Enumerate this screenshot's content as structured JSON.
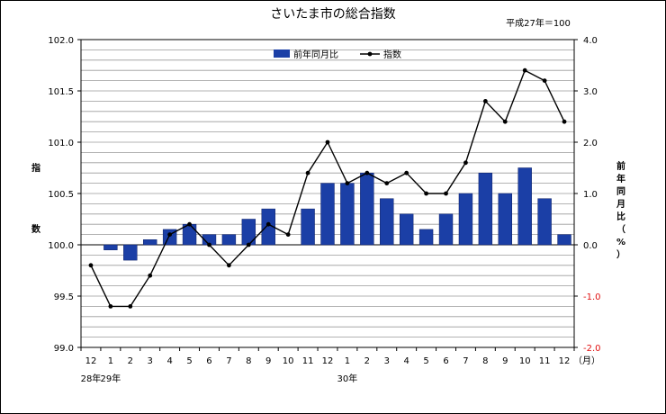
{
  "chart_data": {
    "type": "bar",
    "title": "さいたま市の総合指数",
    "note": "平成27年＝100",
    "ylabel_left": [
      "指",
      "数"
    ],
    "ylabel_right": [
      "前",
      "年",
      "同",
      "月",
      "比",
      "（",
      "%",
      "）"
    ],
    "x_unit": "（月）",
    "categories": [
      "12",
      "1",
      "2",
      "3",
      "4",
      "5",
      "6",
      "7",
      "8",
      "9",
      "10",
      "11",
      "12",
      "1",
      "2",
      "3",
      "4",
      "5",
      "6",
      "7",
      "8",
      "9",
      "10",
      "11",
      "12"
    ],
    "year_labels": [
      {
        "text": "28年",
        "index": 0
      },
      {
        "text": "29年",
        "index": 1
      },
      {
        "text": "30年",
        "index": 13
      }
    ],
    "yleft_range": [
      99.0,
      102.0
    ],
    "yleft_ticks": [
      "99.0",
      "99.5",
      "100.0",
      "100.5",
      "101.0",
      "101.5",
      "102.0"
    ],
    "yright_range": [
      -2.0,
      4.0
    ],
    "yright_ticks": [
      "-2.0",
      "-1.0",
      "0.0",
      "1.0",
      "2.0",
      "3.0",
      "4.0"
    ],
    "grid": true,
    "legend_position": "top-center",
    "series": [
      {
        "name": "前年同月比",
        "type": "bar",
        "axis": "right",
        "color": "#1b3fa6",
        "values": [
          null,
          -0.1,
          -0.3,
          0.1,
          0.3,
          0.4,
          0.2,
          0.2,
          0.5,
          0.7,
          null,
          0.7,
          1.2,
          1.2,
          1.4,
          0.9,
          0.6,
          0.3,
          0.6,
          1.0,
          1.4,
          1.0,
          1.5,
          0.9,
          0.2
        ]
      },
      {
        "name": "指数",
        "type": "line",
        "axis": "left",
        "color": "#000000",
        "values": [
          99.8,
          99.4,
          99.4,
          99.7,
          100.1,
          100.2,
          100.0,
          99.8,
          100.0,
          100.2,
          100.1,
          100.7,
          101.0,
          100.6,
          100.7,
          100.6,
          100.7,
          100.5,
          100.5,
          100.8,
          101.4,
          101.2,
          101.7,
          101.6,
          101.2
        ]
      }
    ]
  }
}
